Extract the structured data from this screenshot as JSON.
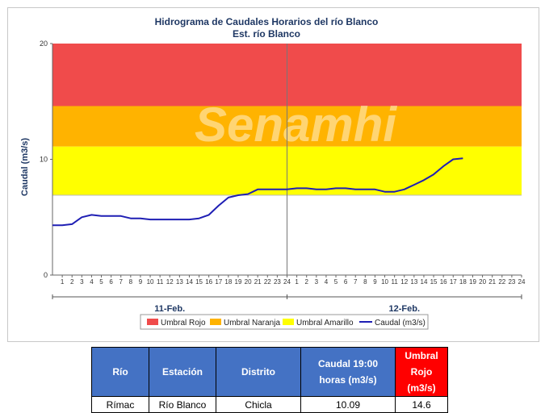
{
  "chart_data": {
    "type": "line",
    "title": "Hidrograma de Caudales Horarios del río Blanco",
    "subtitle": "Est. río Blanco",
    "ylabel": "Caudal  (m3/s)",
    "ylim": [
      0,
      20
    ],
    "yticks": [
      "0",
      "10",
      "20"
    ],
    "hour_ticks": [
      "1",
      "2",
      "3",
      "4",
      "5",
      "6",
      "7",
      "8",
      "9",
      "10",
      "11",
      "12",
      "13",
      "14",
      "15",
      "16",
      "17",
      "18",
      "19",
      "20",
      "21",
      "22",
      "23",
      "24"
    ],
    "days": [
      "11-Feb.",
      "12-Feb."
    ],
    "thresholds": {
      "amarillo": [
        6.9,
        11.1
      ],
      "naranja": [
        11.1,
        14.6
      ],
      "rojo": [
        14.6,
        20
      ]
    },
    "colors": {
      "rojo": "#f04b4b",
      "naranja": "#ffb300",
      "amarillo": "#ffff00",
      "caudal": "#1f1fb4"
    },
    "series": [
      {
        "name": "Caudal (m3/s)",
        "values": [
          4.3,
          4.3,
          4.4,
          5.0,
          5.2,
          5.1,
          5.1,
          5.1,
          4.9,
          4.9,
          4.8,
          4.8,
          4.8,
          4.8,
          4.8,
          4.9,
          5.2,
          6.0,
          6.7,
          6.9,
          7.0,
          7.4,
          7.4,
          7.4,
          7.4,
          7.5,
          7.5,
          7.4,
          7.4,
          7.5,
          7.5,
          7.4,
          7.4,
          7.4,
          7.2,
          7.2,
          7.4,
          7.8,
          8.2,
          8.7,
          9.4,
          10.0,
          10.09
        ]
      }
    ],
    "legend": [
      "Umbral Rojo",
      "Umbral Naranja",
      "Umbral Amarillo",
      "Caudal (m3/s)"
    ],
    "legend_position": "bottom"
  },
  "watermark": "Senamhi",
  "table": {
    "headers": [
      "Río",
      "Estación",
      "Distrito",
      "Caudal 19:00 horas (m3/s)",
      "Umbral Rojo (m3/s)"
    ],
    "row": [
      "Rímac",
      "Río Blanco",
      "Chicla",
      "10.09",
      "14.6"
    ]
  }
}
